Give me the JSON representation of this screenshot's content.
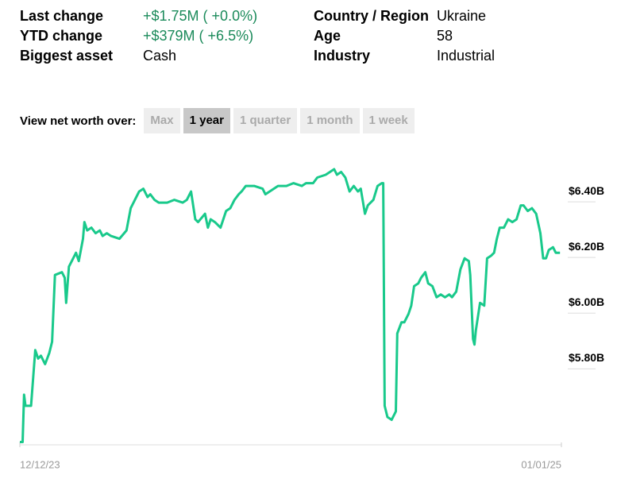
{
  "info": {
    "left": [
      {
        "label": "Last change",
        "value": "+$1.75M ( +0.0%)"
      },
      {
        "label": "YTD change",
        "value": "+$379M ( +6.5%)"
      },
      {
        "label": "Biggest asset",
        "value": "Cash"
      }
    ],
    "right": [
      {
        "label": "Country / Region",
        "value": "Ukraine"
      },
      {
        "label": "Age",
        "value": "58"
      },
      {
        "label": "Industry",
        "value": "Industrial"
      }
    ]
  },
  "period_selector": {
    "label": "View net worth over:",
    "options": [
      "Max",
      "1 year",
      "1 quarter",
      "1 month",
      "1 week"
    ],
    "selected": 1
  },
  "chart_data": {
    "type": "line",
    "color": "#19c98b",
    "x": [
      0,
      2,
      3,
      4,
      8,
      11,
      13,
      15,
      18,
      21,
      23,
      25,
      30,
      32,
      33,
      35,
      37,
      40,
      42,
      45,
      46,
      48,
      51,
      54,
      57,
      59,
      62,
      65,
      71,
      76,
      79,
      82,
      85,
      88,
      91,
      93,
      96,
      99,
      105,
      110,
      116,
      119,
      122,
      125,
      127,
      132,
      134,
      136,
      139,
      143,
      147,
      150,
      153,
      156,
      158,
      161,
      167,
      173,
      175,
      178,
      184,
      190,
      195,
      201,
      204,
      209,
      212,
      218,
      221,
      224,
      226,
      229,
      232,
      235,
      238,
      241,
      243,
      246,
      248,
      252,
      255,
      258,
      259,
      260,
      262,
      265,
      268,
      269,
      272,
      274,
      277,
      279,
      281,
      284,
      286,
      289,
      291,
      294,
      297,
      300,
      303,
      306,
      308,
      311,
      314,
      317,
      320,
      321,
      323,
      324,
      325,
      328,
      331,
      333,
      336,
      338,
      340,
      342,
      345,
      348,
      351,
      354,
      357,
      359,
      362,
      365,
      368,
      371,
      373,
      375,
      377,
      380,
      382,
      385
    ],
    "values": [
      5.5,
      5.5,
      5.67,
      5.63,
      5.63,
      5.83,
      5.8,
      5.81,
      5.78,
      5.82,
      5.86,
      6.1,
      6.11,
      6.09,
      6.0,
      6.13,
      6.15,
      6.18,
      6.15,
      6.23,
      6.29,
      6.26,
      6.27,
      6.25,
      6.26,
      6.24,
      6.25,
      6.24,
      6.23,
      6.26,
      6.34,
      6.37,
      6.4,
      6.41,
      6.38,
      6.39,
      6.37,
      6.36,
      6.36,
      6.37,
      6.36,
      6.37,
      6.4,
      6.3,
      6.29,
      6.32,
      6.27,
      6.3,
      6.29,
      6.27,
      6.33,
      6.34,
      6.37,
      6.39,
      6.4,
      6.42,
      6.42,
      6.41,
      6.39,
      6.4,
      6.42,
      6.42,
      6.43,
      6.42,
      6.43,
      6.43,
      6.45,
      6.46,
      6.47,
      6.48,
      6.46,
      6.47,
      6.45,
      6.4,
      6.42,
      6.4,
      6.41,
      6.32,
      6.35,
      6.37,
      6.42,
      6.43,
      6.43,
      5.63,
      5.59,
      5.58,
      5.61,
      5.89,
      5.93,
      5.93,
      5.96,
      5.99,
      6.06,
      6.07,
      6.09,
      6.11,
      6.07,
      6.06,
      6.02,
      6.03,
      6.02,
      6.03,
      6.02,
      6.04,
      6.12,
      6.16,
      6.15,
      6.1,
      5.87,
      5.85,
      5.9,
      6.0,
      5.99,
      6.16,
      6.17,
      6.18,
      6.23,
      6.27,
      6.27,
      6.3,
      6.29,
      6.3,
      6.35,
      6.35,
      6.33,
      6.34,
      6.32,
      6.25,
      6.16,
      6.16,
      6.19,
      6.2,
      6.18,
      6.18
    ],
    "xlim": [
      0,
      386
    ],
    "xticks": [
      {
        "value": 0,
        "label": "12/12/23"
      },
      {
        "value": 386,
        "label": "01/01/25"
      }
    ],
    "ylim": [
      5.49,
      6.54
    ],
    "yticks": [
      {
        "value": 5.8,
        "label": "$5.80B"
      },
      {
        "value": 6.0,
        "label": "$6.00B"
      },
      {
        "value": 6.2,
        "label": "$6.20B"
      },
      {
        "value": 6.4,
        "label": "$6.40B"
      }
    ]
  }
}
